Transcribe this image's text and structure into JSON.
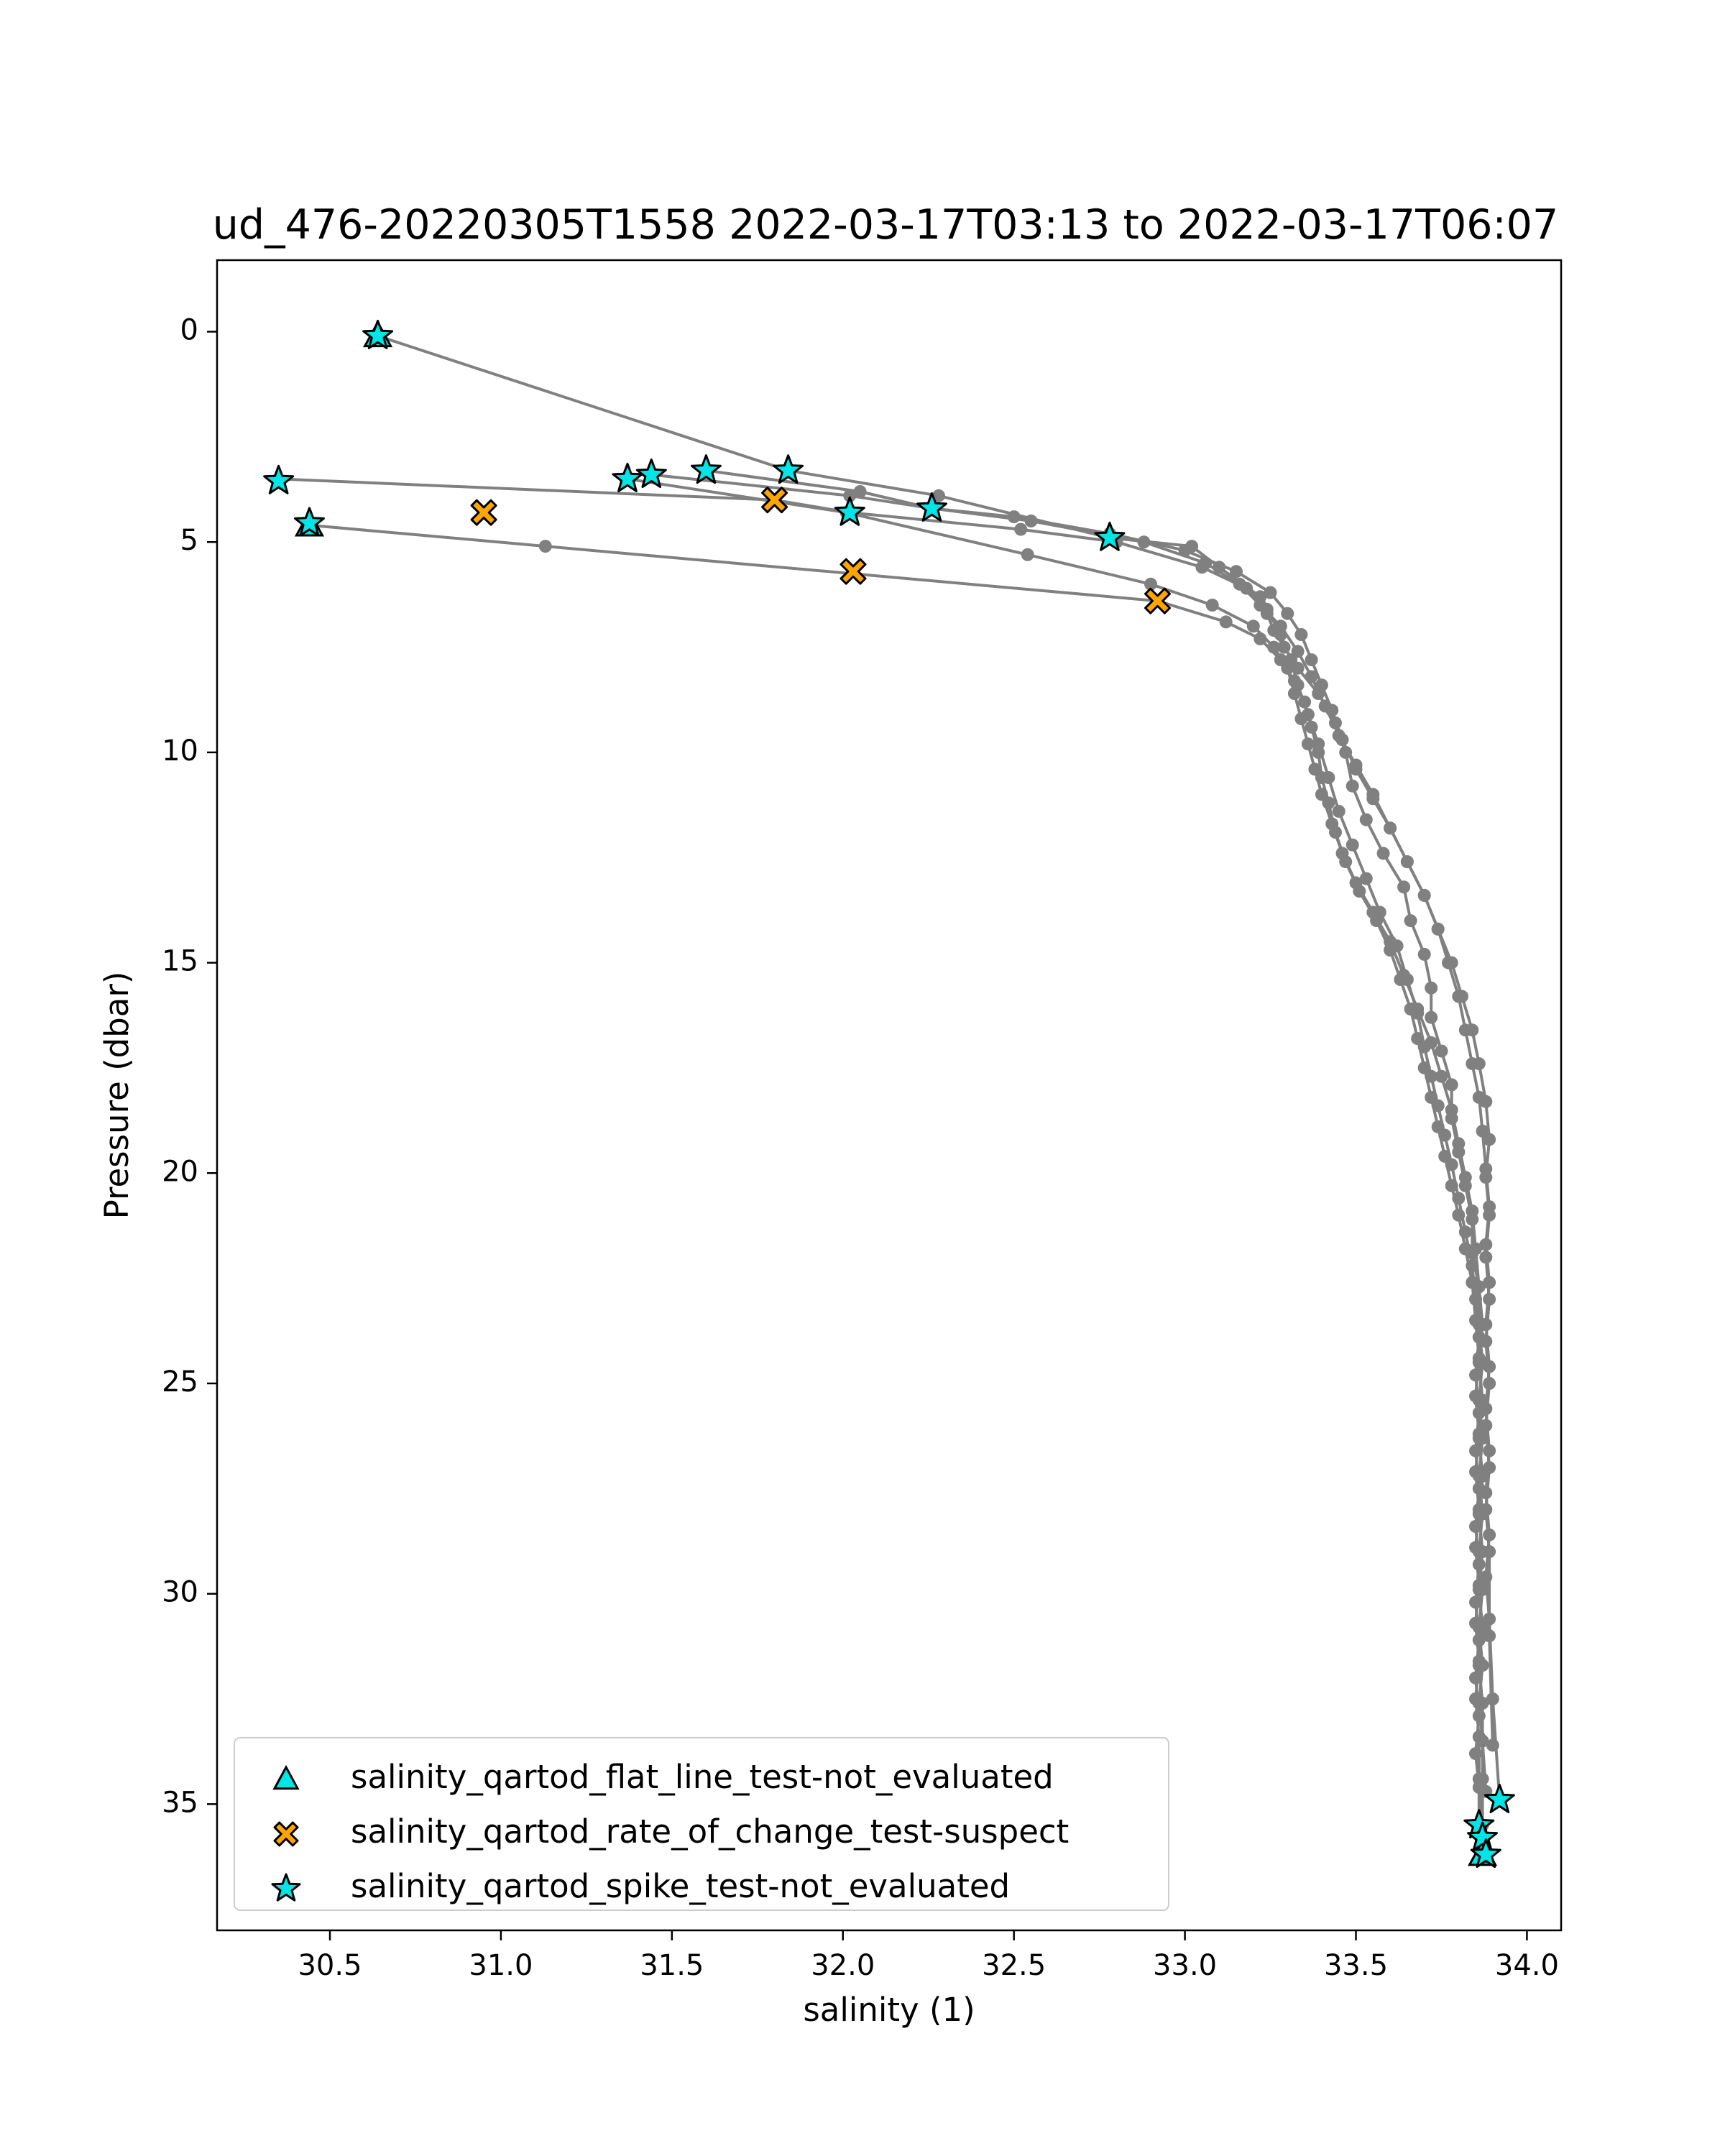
{
  "chart_data": {
    "type": "line",
    "title": "ud_476-20220305T1558 2022-03-17T03:13 to 2022-03-17T06:07",
    "xlabel": "salinity (1)",
    "ylabel": "Pressure (dbar)",
    "xlim": [
      30.17,
      34.1
    ],
    "ylim": [
      38.0,
      -1.7
    ],
    "y_inverted": true,
    "xticks": [
      30.5,
      31.0,
      31.5,
      32.0,
      32.5,
      33.0,
      33.5,
      34.0
    ],
    "xtick_labels": [
      "30.5",
      "31.0",
      "31.5",
      "32.0",
      "32.5",
      "33.0",
      "33.5",
      "34.0"
    ],
    "yticks": [
      0,
      5,
      10,
      15,
      20,
      25,
      30,
      35
    ],
    "ytick_labels": [
      "0",
      "5",
      "10",
      "15",
      "20",
      "25",
      "30",
      "35"
    ],
    "grid": false,
    "line_color": "#808080",
    "profiles": [
      {
        "x": [
          30.64,
          31.84,
          32.28,
          32.78,
          33.02,
          33.1,
          33.22,
          33.24,
          33.26,
          33.29,
          33.33,
          33.39,
          33.44,
          33.47,
          33.49,
          33.53,
          33.58,
          33.64,
          33.66,
          33.7,
          33.72,
          33.72,
          33.75,
          33.78,
          33.78,
          33.8,
          33.82,
          33.84,
          33.84,
          33.86,
          33.86,
          33.87,
          33.86,
          33.87,
          33.86,
          33.87,
          33.86,
          33.87,
          33.86,
          33.87,
          33.86,
          33.87,
          33.87,
          33.87,
          33.88
        ],
        "y": [
          0.1,
          3.3,
          3.9,
          4.9,
          5.1,
          5.6,
          6.3,
          6.7,
          7.1,
          7.5,
          8.0,
          8.6,
          9.3,
          10.0,
          10.8,
          11.6,
          12.4,
          13.2,
          14.0,
          14.8,
          15.6,
          16.3,
          17.1,
          17.9,
          18.7,
          19.5,
          20.3,
          21.1,
          21.9,
          22.7,
          23.6,
          24.5,
          25.4,
          26.3,
          27.2,
          28.1,
          29.0,
          29.9,
          30.8,
          31.7,
          32.6,
          33.5,
          34.4,
          35.5,
          36.2
        ]
      },
      {
        "x": [
          30.35,
          31.8,
          32.02,
          32.52,
          32.8,
          33.05,
          33.18,
          33.24,
          33.28,
          33.31,
          33.33,
          33.36,
          33.39,
          33.42,
          33.45,
          33.49,
          33.53,
          33.57,
          33.62,
          33.65,
          33.68,
          33.7,
          33.72,
          33.74,
          33.76,
          33.78,
          33.8,
          33.82,
          33.84,
          33.85,
          33.86,
          33.85,
          33.86,
          33.85,
          33.86,
          33.85,
          33.86,
          33.85,
          33.86,
          33.85,
          33.86,
          33.85,
          33.86,
          33.86,
          33.87
        ],
        "y": [
          3.5,
          4.0,
          4.3,
          4.7,
          5.0,
          5.6,
          6.1,
          6.6,
          7.2,
          7.8,
          8.4,
          9.1,
          9.8,
          10.6,
          11.4,
          12.2,
          13.0,
          13.8,
          14.6,
          15.4,
          16.2,
          17.0,
          17.7,
          18.4,
          19.1,
          19.8,
          20.6,
          21.4,
          22.2,
          23.0,
          23.9,
          24.8,
          25.7,
          26.6,
          27.5,
          28.4,
          29.3,
          30.2,
          31.1,
          32.0,
          32.9,
          33.8,
          34.6,
          35.5,
          36.0
        ]
      },
      {
        "x": [
          30.44,
          31.13,
          32.92,
          33.12,
          33.22,
          33.28,
          33.32,
          33.35,
          33.37,
          33.39,
          33.4,
          33.42,
          33.44,
          33.47,
          33.51,
          33.56,
          33.6,
          33.63,
          33.66,
          33.68,
          33.7,
          33.72,
          33.74,
          33.76,
          33.78,
          33.8,
          33.82,
          33.84,
          33.85,
          33.86,
          33.85,
          33.86,
          33.85,
          33.86,
          33.85,
          33.86,
          33.85,
          33.86,
          33.85,
          33.86,
          33.86,
          33.87
        ],
        "y": [
          4.6,
          5.1,
          6.4,
          6.9,
          7.3,
          7.8,
          8.3,
          8.8,
          9.4,
          10.0,
          10.6,
          11.2,
          11.9,
          12.6,
          13.3,
          14.0,
          14.7,
          15.4,
          16.1,
          16.8,
          17.5,
          18.2,
          18.9,
          19.6,
          20.3,
          21.0,
          21.8,
          22.6,
          23.5,
          24.4,
          25.3,
          26.2,
          27.1,
          28.0,
          28.9,
          29.8,
          30.7,
          31.6,
          32.5,
          33.4,
          34.4,
          35.8
        ]
      },
      {
        "x": [
          31.37,
          32.01,
          32.54,
          32.9,
          33.08,
          33.2,
          33.26,
          33.3,
          33.32,
          33.34,
          33.36,
          33.38,
          33.4,
          33.43,
          33.46,
          33.5,
          33.55,
          33.6,
          33.64,
          33.68,
          33.72,
          33.75,
          33.78,
          33.8,
          33.82,
          33.84,
          33.85,
          33.86,
          33.87,
          33.86,
          33.87,
          33.86,
          33.87,
          33.86,
          33.87,
          33.86,
          33.87,
          33.86,
          33.87,
          33.87,
          33.88
        ],
        "y": [
          3.5,
          4.3,
          5.3,
          6.0,
          6.5,
          7.0,
          7.5,
          8.0,
          8.6,
          9.2,
          9.8,
          10.4,
          11.0,
          11.7,
          12.4,
          13.1,
          13.8,
          14.5,
          15.3,
          16.1,
          16.9,
          17.7,
          18.5,
          19.3,
          20.1,
          20.9,
          21.8,
          22.7,
          23.6,
          24.5,
          25.4,
          26.3,
          27.2,
          28.1,
          29.0,
          29.9,
          30.8,
          31.7,
          32.6,
          33.5,
          34.7
        ]
      },
      {
        "x": [
          31.44,
          32.02,
          32.26,
          32.5,
          32.78,
          33.0,
          33.15,
          33.25,
          33.3,
          33.34,
          33.37,
          33.4,
          33.43,
          33.46,
          33.5,
          33.55,
          33.6,
          33.65,
          33.7,
          33.74,
          33.77,
          33.8,
          33.82,
          33.84,
          33.86,
          33.87,
          33.88,
          33.89,
          33.88,
          33.89,
          33.88,
          33.89,
          33.88,
          33.89,
          33.88,
          33.89,
          33.88,
          33.89,
          33.9,
          33.92
        ],
        "y": [
          3.4,
          3.9,
          4.2,
          4.4,
          4.8,
          5.2,
          5.7,
          6.2,
          6.7,
          7.2,
          7.8,
          8.4,
          9.0,
          9.7,
          10.4,
          11.1,
          11.8,
          12.6,
          13.4,
          14.2,
          15.0,
          15.8,
          16.6,
          17.4,
          18.2,
          19.0,
          19.9,
          20.8,
          21.7,
          22.6,
          23.6,
          24.6,
          25.6,
          26.6,
          27.6,
          28.6,
          29.6,
          30.6,
          32.5,
          34.9
        ]
      },
      {
        "x": [
          31.6,
          32.05,
          32.26,
          32.55,
          32.88,
          33.06,
          33.16,
          33.22,
          33.28,
          33.33,
          33.37,
          33.41,
          33.45,
          33.5,
          33.55,
          33.6,
          33.65,
          33.7,
          33.74,
          33.78,
          33.81,
          33.84,
          33.86,
          33.88,
          33.89,
          33.88,
          33.89,
          33.88,
          33.89,
          33.88,
          33.89,
          33.88,
          33.89,
          33.88,
          33.89,
          33.89,
          33.9
        ],
        "y": [
          3.3,
          3.8,
          4.2,
          4.5,
          5.0,
          5.5,
          6.0,
          6.5,
          7.0,
          7.6,
          8.2,
          8.9,
          9.6,
          10.3,
          11.0,
          11.8,
          12.6,
          13.4,
          14.2,
          15.0,
          15.8,
          16.6,
          17.4,
          18.3,
          19.2,
          20.1,
          21.0,
          22.0,
          23.0,
          24.0,
          25.0,
          26.0,
          27.0,
          28.0,
          29.0,
          31.0,
          33.6
        ]
      }
    ],
    "flagged_points": {
      "salinity_qartod_flat_line_test-not_evaluated": {
        "x": [
          30.64,
          30.44,
          33.87
        ],
        "y": [
          0.1,
          4.6,
          36.2
        ]
      },
      "salinity_qartod_rate_of_change_test-suspect": {
        "x": [
          30.95,
          31.8,
          32.03,
          32.92
        ],
        "y": [
          4.3,
          4.0,
          5.7,
          6.4
        ]
      },
      "salinity_qartod_spike_test-not_evaluated": {
        "x": [
          30.64,
          30.35,
          30.44,
          31.37,
          31.44,
          31.6,
          31.84,
          32.02,
          32.26,
          32.78,
          33.92,
          33.86,
          33.87,
          33.88
        ],
        "y": [
          0.1,
          3.55,
          4.55,
          3.5,
          3.4,
          3.3,
          3.3,
          4.3,
          4.2,
          4.9,
          34.9,
          35.5,
          35.8,
          36.2
        ]
      }
    },
    "legend": {
      "placement": "lower-left",
      "entries": [
        {
          "label": "salinity_qartod_flat_line_test-not_evaluated",
          "marker": "triangle",
          "color": "#00e5e5"
        },
        {
          "label": "salinity_qartod_rate_of_change_test-suspect",
          "marker": "x",
          "color": "#ffa500"
        },
        {
          "label": "salinity_qartod_spike_test-not_evaluated",
          "marker": "star",
          "color": "#00e5e5"
        }
      ]
    }
  }
}
